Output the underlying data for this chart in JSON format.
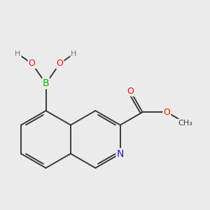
{
  "background_color": "#ebebeb",
  "bond_color": "#3a3a3a",
  "bond_width": 1.4,
  "atom_colors": {
    "B": "#00bb00",
    "O": "#ee1100",
    "N": "#1a1acc",
    "C": "#3a3a3a",
    "H": "#777777"
  },
  "figsize": [
    3.0,
    3.0
  ],
  "dpi": 100
}
